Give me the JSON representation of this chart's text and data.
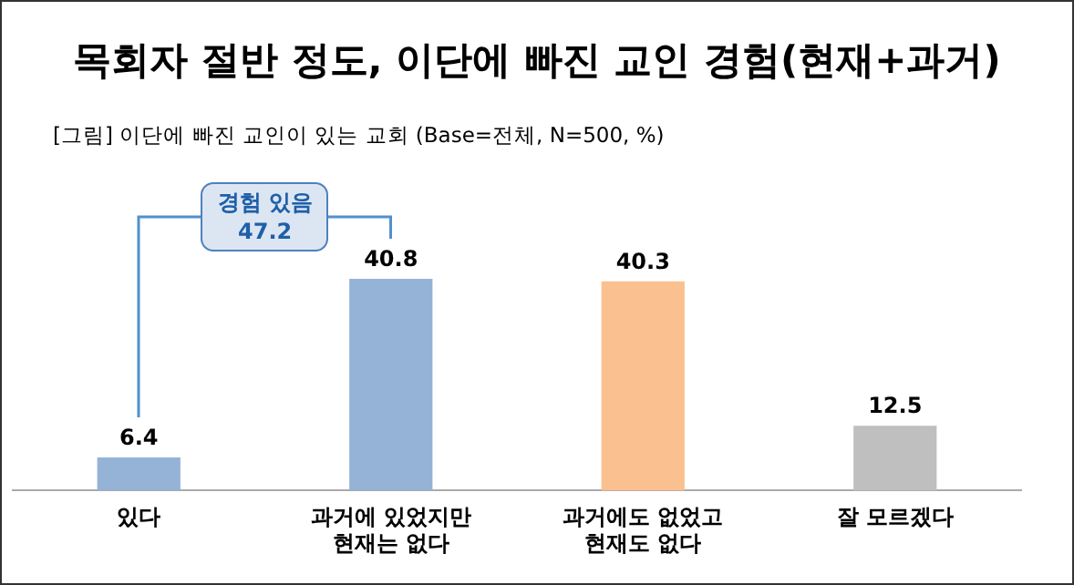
{
  "chart_data": {
    "type": "bar",
    "title": "목회자 절반 정도, 이단에 빠진 교인 경험(현재+과거)",
    "subtitle": "[그림] 이단에 빠진 교인이 있는 교회 (Base=전체, N=500, %)",
    "categories": [
      "있다",
      "과거에 있었지만 현재는 없다",
      "과거에도 없었고 현재도 없다",
      "잘 모르겠다"
    ],
    "values": [
      6.4,
      40.8,
      40.3,
      12.5
    ],
    "colors": [
      "#95b3d7",
      "#95b3d7",
      "#fac090",
      "#bfbfbf"
    ],
    "data_labels": true,
    "grid": false,
    "legend": false,
    "annotations": [
      "경험 있음 47.2"
    ]
  }
}
